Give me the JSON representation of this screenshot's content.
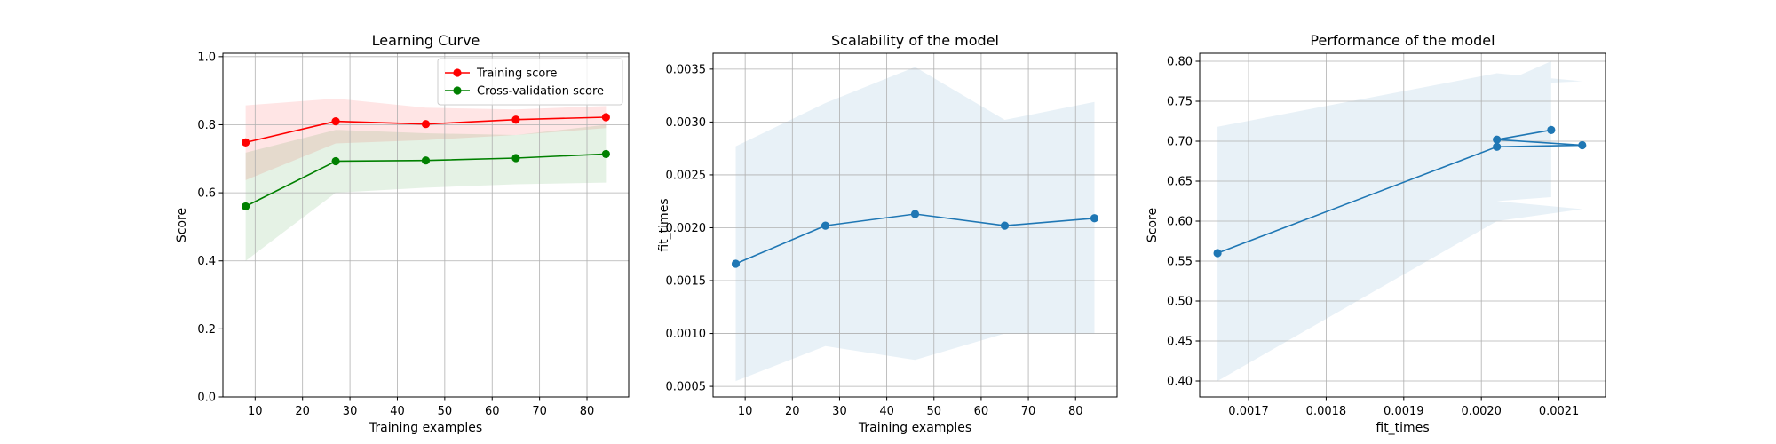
{
  "chart_data": [
    {
      "type": "line",
      "title": "Learning Curve",
      "xlabel": "Training examples",
      "ylabel": "Score",
      "xlim": [
        3.2,
        88.8
      ],
      "ylim": [
        0.0,
        1.01
      ],
      "xticks": [
        10,
        20,
        30,
        40,
        50,
        60,
        70,
        80
      ],
      "yticks": [
        0.0,
        0.2,
        0.4,
        0.6,
        0.8,
        1.0
      ],
      "grid": true,
      "legend": "top-right",
      "x": [
        8,
        27,
        46,
        65,
        84
      ],
      "series": [
        {
          "name": "Training score",
          "color": "#ff0000",
          "values": [
            0.748,
            0.81,
            0.802,
            0.815,
            0.822
          ],
          "band_lower": [
            0.637,
            0.745,
            0.755,
            0.77,
            0.79
          ],
          "band_upper": [
            0.857,
            0.877,
            0.85,
            0.845,
            0.855
          ]
        },
        {
          "name": "Cross-validation score",
          "color": "#008000",
          "values": [
            0.56,
            0.693,
            0.695,
            0.702,
            0.714
          ],
          "band_lower": [
            0.4,
            0.6,
            0.615,
            0.625,
            0.63
          ],
          "band_upper": [
            0.718,
            0.785,
            0.775,
            0.77,
            0.8
          ]
        }
      ]
    },
    {
      "type": "line",
      "title": "Scalability of the model",
      "xlabel": "Training examples",
      "ylabel": "fit_times",
      "xlim": [
        3.2,
        88.8
      ],
      "ylim": [
        0.0004,
        0.00365
      ],
      "xticks": [
        10,
        20,
        30,
        40,
        50,
        60,
        70,
        80
      ],
      "yticks": [
        0.0005,
        0.001,
        0.0015,
        0.002,
        0.0025,
        0.003,
        0.0035
      ],
      "ytick_labels": [
        "0.0005",
        "0.0010",
        "0.0015",
        "0.0020",
        "0.0025",
        "0.0030",
        "0.0035"
      ],
      "grid": true,
      "x": [
        8,
        27,
        46,
        65,
        84
      ],
      "series": [
        {
          "name": "",
          "color": "#1f77b4",
          "values": [
            0.00166,
            0.00202,
            0.00213,
            0.00202,
            0.00209
          ],
          "band_lower": [
            0.00055,
            0.00088,
            0.00075,
            0.001,
            0.001
          ],
          "band_upper": [
            0.00277,
            0.00318,
            0.00352,
            0.00302,
            0.00319
          ]
        }
      ]
    },
    {
      "type": "line",
      "title": "Performance of the model",
      "xlabel": "fit_times",
      "ylabel": "Score",
      "xlim": [
        0.001637,
        0.00216
      ],
      "ylim": [
        0.38,
        0.81
      ],
      "xticks": [
        0.0017,
        0.0018,
        0.0019,
        0.002,
        0.0021
      ],
      "xtick_labels": [
        "0.0017",
        "0.0018",
        "0.0019",
        "0.0020",
        "0.0021"
      ],
      "yticks": [
        0.4,
        0.45,
        0.5,
        0.55,
        0.6,
        0.65,
        0.7,
        0.75,
        0.8
      ],
      "ytick_labels": [
        "0.40",
        "0.45",
        "0.50",
        "0.55",
        "0.60",
        "0.65",
        "0.70",
        "0.75",
        "0.80"
      ],
      "grid": true,
      "series": [
        {
          "name": "",
          "color": "#1f77b4",
          "x": [
            0.00166,
            0.00202,
            0.00213,
            0.00202,
            0.00209
          ],
          "values": [
            0.56,
            0.693,
            0.695,
            0.702,
            0.714
          ],
          "band_lower": [
            0.4,
            0.6,
            0.615,
            0.625,
            0.63
          ],
          "band_upper": [
            0.718,
            0.785,
            0.775,
            0.77,
            0.8
          ]
        }
      ]
    }
  ]
}
